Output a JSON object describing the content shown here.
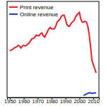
{
  "chart_data": {
    "type": "line",
    "x": [
      1950,
      1951,
      1952,
      1953,
      1954,
      1955,
      1956,
      1957,
      1958,
      1959,
      1960,
      1961,
      1962,
      1963,
      1964,
      1965,
      1966,
      1967,
      1968,
      1969,
      1970,
      1971,
      1972,
      1973,
      1974,
      1975,
      1976,
      1977,
      1978,
      1979,
      1980,
      1981,
      1982,
      1983,
      1984,
      1985,
      1986,
      1987,
      1988,
      1989,
      1990,
      1991,
      1992,
      1993,
      1994,
      1995,
      1996,
      1997,
      1998,
      1999,
      2000,
      2001,
      2002,
      2003,
      2004,
      2005,
      2006,
      2007,
      2008,
      2009,
      2010,
      2011,
      2012
    ],
    "series": [
      {
        "name": "Print revenue",
        "color": "#e8202a",
        "values": [
          34,
          34.5,
          35,
          36,
          36.5,
          37,
          38,
          37.5,
          36,
          37.5,
          38,
          37.5,
          38,
          39,
          40,
          41.5,
          43,
          43,
          44,
          45.5,
          45,
          45,
          46.5,
          47,
          45,
          44,
          46,
          48,
          50,
          51,
          50,
          50,
          50,
          52,
          55,
          56,
          57,
          59,
          60,
          60,
          57,
          53,
          52,
          52,
          54,
          55,
          56,
          58,
          60,
          61,
          62,
          57,
          55,
          55,
          55.5,
          55,
          52,
          46,
          37,
          27,
          24,
          21,
          18
        ]
      },
      {
        "name": "Online revenue",
        "color": "#2040d0",
        "values": [
          null,
          null,
          null,
          null,
          null,
          null,
          null,
          null,
          null,
          null,
          null,
          null,
          null,
          null,
          null,
          null,
          null,
          null,
          null,
          null,
          null,
          null,
          null,
          null,
          null,
          null,
          null,
          null,
          null,
          null,
          null,
          null,
          null,
          null,
          null,
          null,
          null,
          null,
          null,
          null,
          null,
          null,
          null,
          null,
          null,
          null,
          null,
          null,
          null,
          null,
          null,
          null,
          null,
          1.5,
          2,
          2.5,
          3,
          3.5,
          3.3,
          3,
          3.2,
          3.3,
          3.4
        ]
      }
    ],
    "xlim": [
      1948,
      2014
    ],
    "xticks": [
      1950,
      1960,
      1970,
      1980,
      1990,
      2000,
      2010
    ],
    "ylim": [
      0,
      70
    ],
    "tick_labels": "x",
    "grid": false,
    "legend": "upper-left"
  }
}
